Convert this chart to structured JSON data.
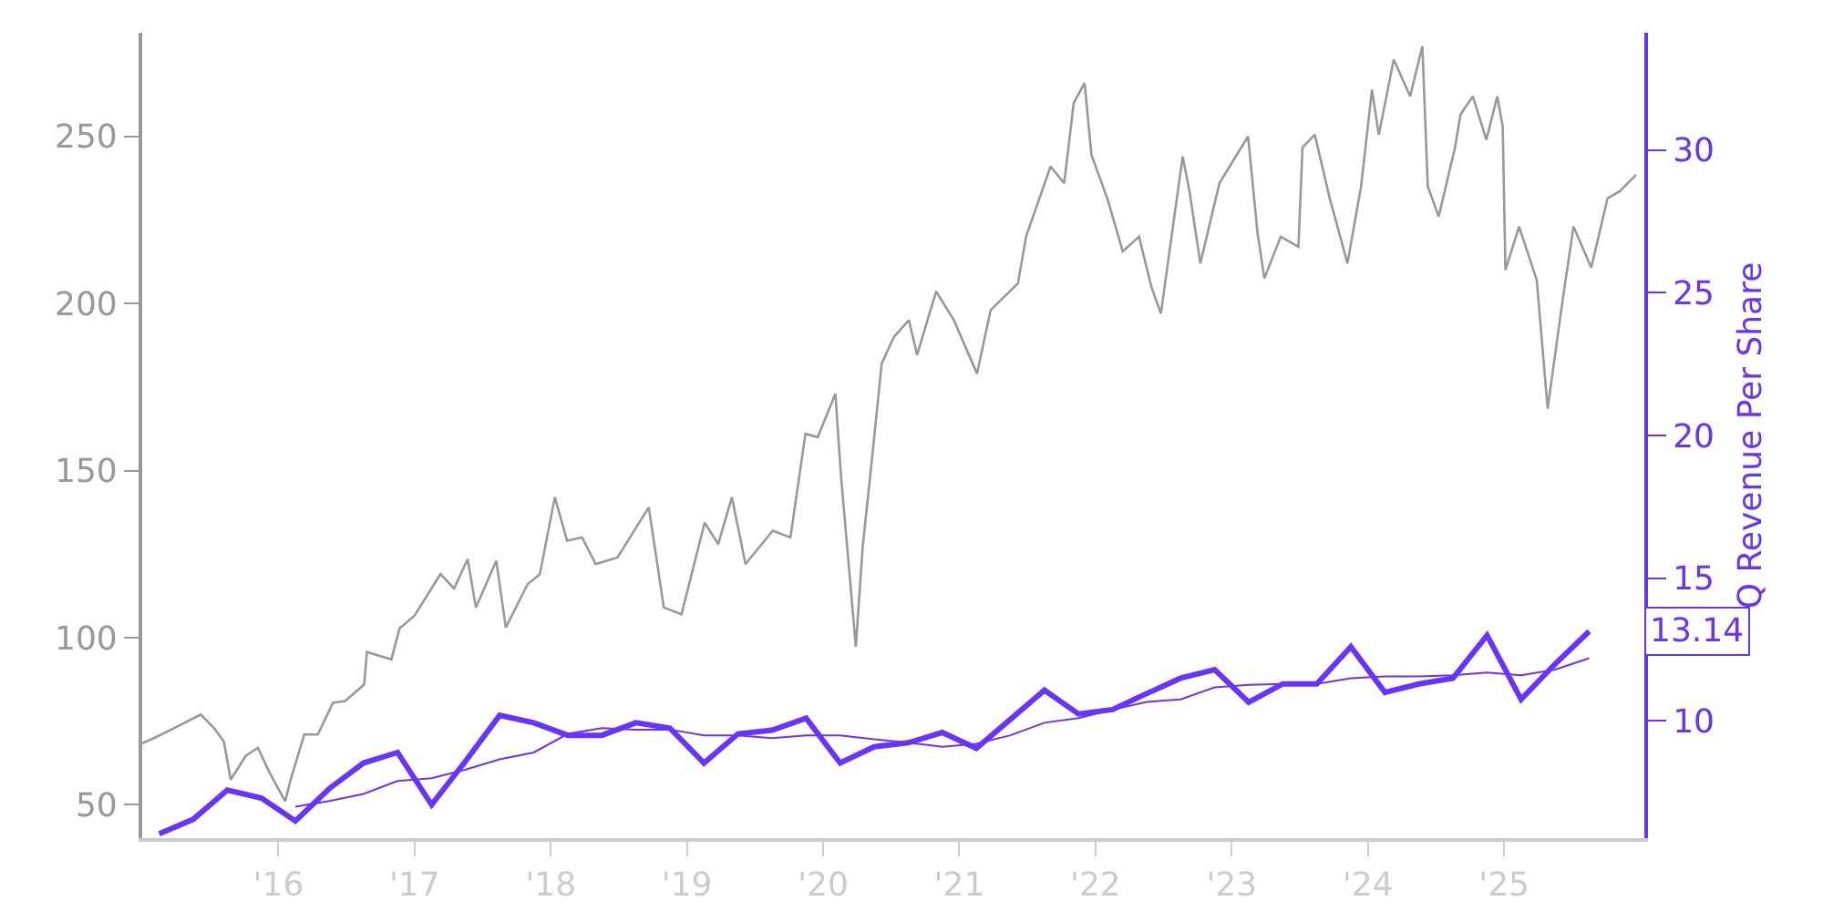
{
  "chart_data": {
    "type": "line",
    "y2label": "Q Revenue Per Share",
    "xlim": [
      2015,
      2026.03
    ],
    "xticks": [
      {
        "value": 2016,
        "label": "'16"
      },
      {
        "value": 2017,
        "label": "'17"
      },
      {
        "value": 2018,
        "label": "'18"
      },
      {
        "value": 2019,
        "label": "'19"
      },
      {
        "value": 2020,
        "label": "'20"
      },
      {
        "value": 2021,
        "label": "'21"
      },
      {
        "value": 2022,
        "label": "'22"
      },
      {
        "value": 2023,
        "label": "'23"
      },
      {
        "value": 2024,
        "label": "'24"
      },
      {
        "value": 2025,
        "label": "'25"
      }
    ],
    "ylim": [
      40,
      281
    ],
    "yticks": [
      50,
      100,
      150,
      200,
      250
    ],
    "y2lim": [
      5.9,
      34.1
    ],
    "y2ticks": [
      10,
      15,
      20,
      25,
      30
    ],
    "grid": false,
    "marker": "none",
    "line_style": "solid",
    "series": [
      {
        "color": "#999999",
        "x": [
          2015.0,
          2015.09,
          2015.23,
          2015.36,
          2015.43,
          2015.53,
          2015.6,
          2015.65,
          2015.76,
          2015.85,
          2015.93,
          2016.05,
          2016.09,
          2016.19,
          2016.29,
          2016.4,
          2016.49,
          2016.63,
          2016.65,
          2016.83,
          2016.89,
          2017.0,
          2017.19,
          2017.29,
          2017.39,
          2017.45,
          2017.6,
          2017.67,
          2017.83,
          2017.92,
          2018.03,
          2018.12,
          2018.23,
          2018.33,
          2018.49,
          2018.72,
          2018.83,
          2018.96,
          2019.13,
          2019.23,
          2019.33,
          2019.43,
          2019.63,
          2019.76,
          2019.87,
          2019.96,
          2020.09,
          2020.13,
          2020.24,
          2020.29,
          2020.36,
          2020.43,
          2020.52,
          2020.63,
          2020.69,
          2020.83,
          2020.96,
          2021.13,
          2021.23,
          2021.43,
          2021.49,
          2021.67,
          2021.77,
          2021.84,
          2021.92,
          2021.97,
          2022.09,
          2022.2,
          2022.32,
          2022.41,
          2022.48,
          2022.64,
          2022.69,
          2022.77,
          2022.91,
          2023.12,
          2023.19,
          2023.24,
          2023.36,
          2023.49,
          2023.52,
          2023.61,
          2023.72,
          2023.85,
          2023.95,
          2024.03,
          2024.08,
          2024.19,
          2024.31,
          2024.4,
          2024.44,
          2024.52,
          2024.64,
          2024.68,
          2024.77,
          2024.87,
          2024.95,
          2024.99,
          2025.01,
          2025.11,
          2025.24,
          2025.32,
          2025.43,
          2025.51,
          2025.64,
          2025.76,
          2025.85,
          2025.97
        ],
        "values": [
          68.4,
          70,
          72.8,
          75.5,
          77,
          72.8,
          68.9,
          57.5,
          64.6,
          67,
          60,
          51,
          57.5,
          71,
          71,
          80.5,
          81,
          86,
          95.7,
          93.5,
          102.8,
          106.6,
          119,
          114.7,
          123.5,
          109,
          123,
          103,
          116,
          119,
          142,
          129,
          130,
          122,
          124,
          139,
          109,
          107,
          134.4,
          128,
          142,
          122,
          132,
          130,
          161,
          160,
          173,
          149,
          97.3,
          127,
          154,
          182,
          190,
          195,
          184.6,
          203.6,
          195,
          179,
          198,
          206,
          220,
          241,
          236,
          260,
          266,
          244.5,
          231,
          215.6,
          220,
          205,
          197,
          244,
          233.6,
          212,
          236,
          250,
          221,
          207.5,
          220,
          217,
          246.7,
          250.5,
          231.5,
          212,
          235,
          264,
          250.5,
          273,
          262,
          277,
          235,
          226,
          246.7,
          256.5,
          262,
          249,
          262,
          253,
          210,
          223,
          207,
          168.5,
          201,
          223,
          210.7,
          231.5,
          233.6,
          238.5
        ]
      },
      {
        "color": "#6633ff",
        "axis": "y2",
        "x": [
          2015.125,
          2015.375,
          2015.625,
          2015.875,
          2016.125,
          2016.375,
          2016.625,
          2016.875,
          2017.125,
          2017.375,
          2017.625,
          2017.875,
          2018.125,
          2018.375,
          2018.625,
          2018.875,
          2019.125,
          2019.375,
          2019.625,
          2019.875,
          2020.125,
          2020.375,
          2020.625,
          2020.875,
          2021.125,
          2021.375,
          2021.625,
          2021.875,
          2022.125,
          2022.375,
          2022.625,
          2022.875,
          2023.125,
          2023.375,
          2023.625,
          2023.875,
          2024.125,
          2024.375,
          2024.625,
          2024.875,
          2025.125,
          2025.375,
          2025.625
        ],
        "values": [
          6.05,
          6.56,
          7.58,
          7.3,
          6.5,
          7.64,
          8.53,
          8.9,
          7.07,
          8.6,
          10.2,
          9.94,
          9.5,
          9.5,
          9.94,
          9.75,
          8.53,
          9.55,
          9.68,
          10.1,
          8.53,
          9.1,
          9.24,
          9.6,
          9.04,
          10.06,
          11.08,
          10.25,
          10.4,
          10.96,
          11.5,
          11.8,
          10.66,
          11.3,
          11.3,
          12.6,
          11.0,
          11.3,
          11.5,
          13.0,
          10.76,
          12.0,
          13.14
        ],
        "value_labels": [
          null,
          null,
          null,
          null,
          null,
          null,
          null,
          null,
          null,
          null,
          null,
          null,
          null,
          null,
          null,
          null,
          null,
          null,
          null,
          null,
          null,
          null,
          null,
          null,
          null,
          null,
          null,
          null,
          null,
          null,
          null,
          null,
          null,
          null,
          null,
          null,
          null,
          null,
          null,
          null,
          null,
          null,
          "13.14"
        ]
      },
      {
        "color": "#6633ff",
        "axis": "y2",
        "x": [
          2016.125,
          2016.375,
          2016.625,
          2016.875,
          2017.125,
          2017.375,
          2017.625,
          2017.875,
          2018.125,
          2018.375,
          2018.625,
          2018.875,
          2019.125,
          2019.375,
          2019.625,
          2019.875,
          2020.125,
          2020.375,
          2020.625,
          2020.875,
          2021.125,
          2021.375,
          2021.625,
          2021.875,
          2022.125,
          2022.375,
          2022.625,
          2022.875,
          2023.125,
          2023.375,
          2023.625,
          2023.875,
          2024.125,
          2024.375,
          2024.625,
          2024.875,
          2025.125,
          2025.375,
          2025.625
        ],
        "values": [
          7.0,
          7.2,
          7.45,
          7.9,
          8.0,
          8.3,
          8.66,
          8.9,
          9.55,
          9.75,
          9.7,
          9.7,
          9.5,
          9.5,
          9.4,
          9.5,
          9.5,
          9.36,
          9.24,
          9.1,
          9.2,
          9.5,
          9.94,
          10.1,
          10.4,
          10.67,
          10.76,
          11.18,
          11.27,
          11.3,
          11.3,
          11.5,
          11.56,
          11.56,
          11.6,
          11.7,
          11.6,
          11.8,
          12.2
        ]
      }
    ]
  }
}
